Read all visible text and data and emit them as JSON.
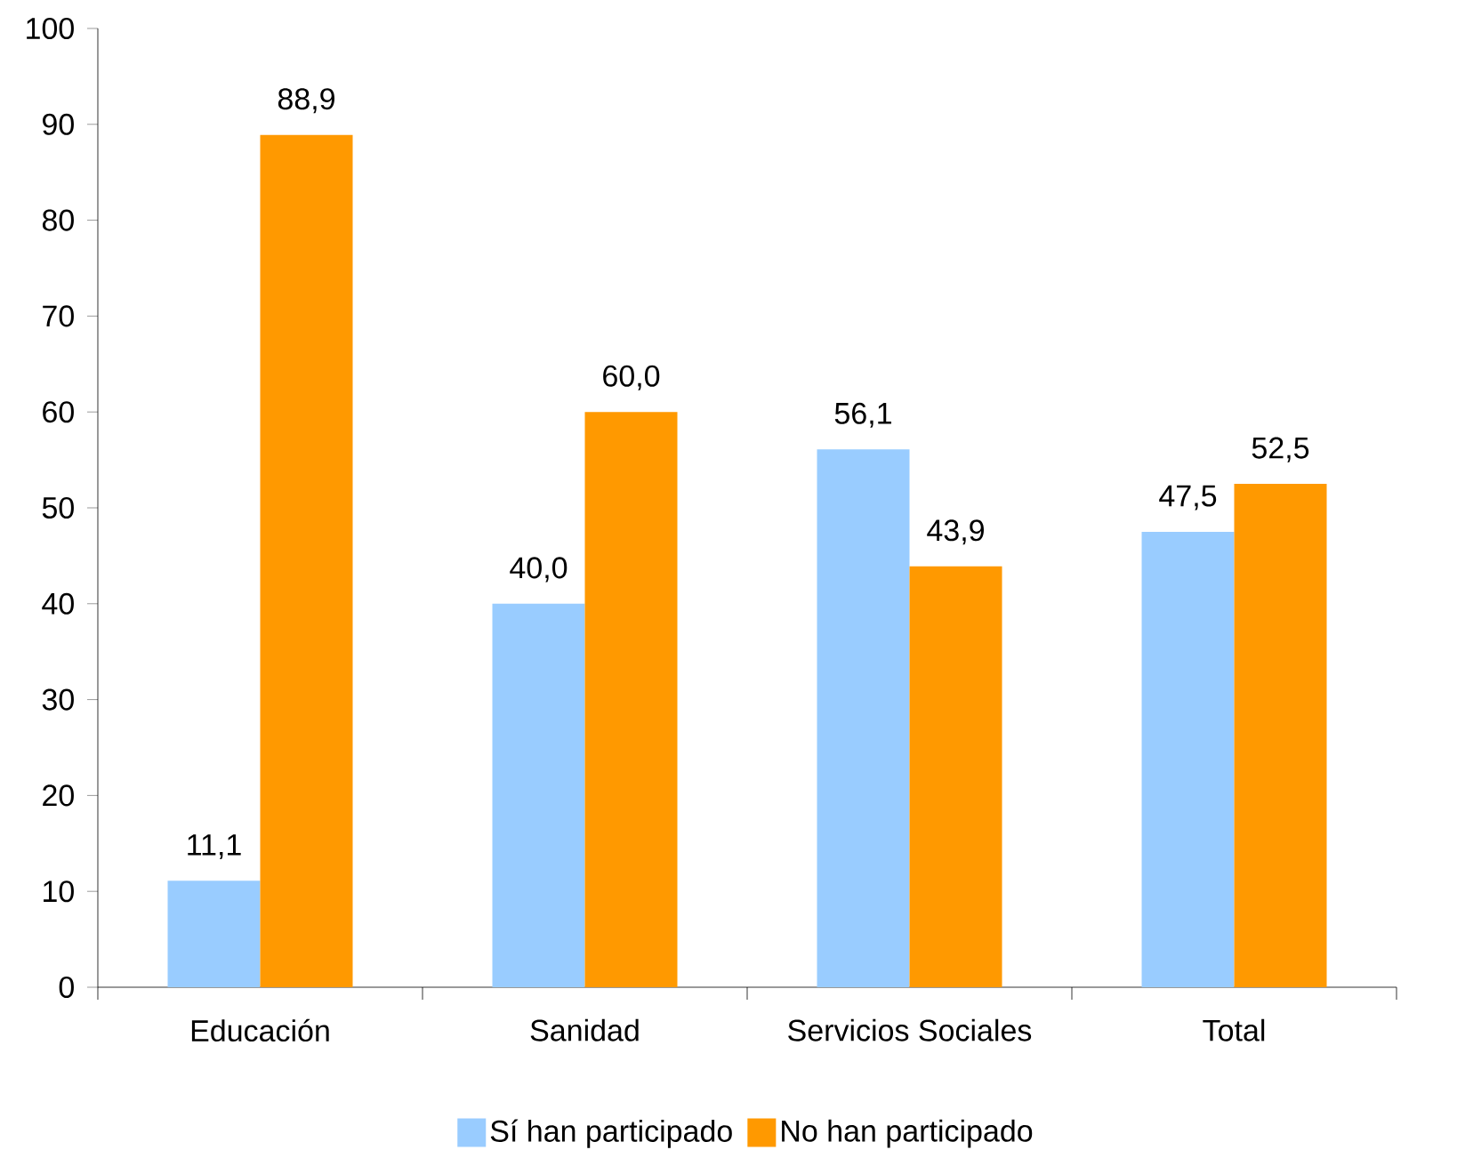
{
  "chart_data": {
    "type": "bar",
    "categories": [
      "Educación",
      "Sanidad",
      "Servicios Sociales",
      "Total"
    ],
    "series": [
      {
        "name": "Sí han participado",
        "color": "#99ccff",
        "values": [
          11.1,
          40.0,
          56.1,
          47.5
        ],
        "value_labels": [
          "11,1",
          "40,0",
          "56,1",
          "47,5"
        ]
      },
      {
        "name": "No han participado",
        "color": "#ff9900",
        "values": [
          88.9,
          60.0,
          43.9,
          52.5
        ],
        "value_labels": [
          "88,9",
          "60,0",
          "43,9",
          "52,5"
        ]
      }
    ],
    "ylim": [
      0,
      100
    ],
    "yticks": [
      0,
      10,
      20,
      30,
      40,
      50,
      60,
      70,
      80,
      90,
      100
    ],
    "grid": false,
    "legend": "bottom"
  }
}
